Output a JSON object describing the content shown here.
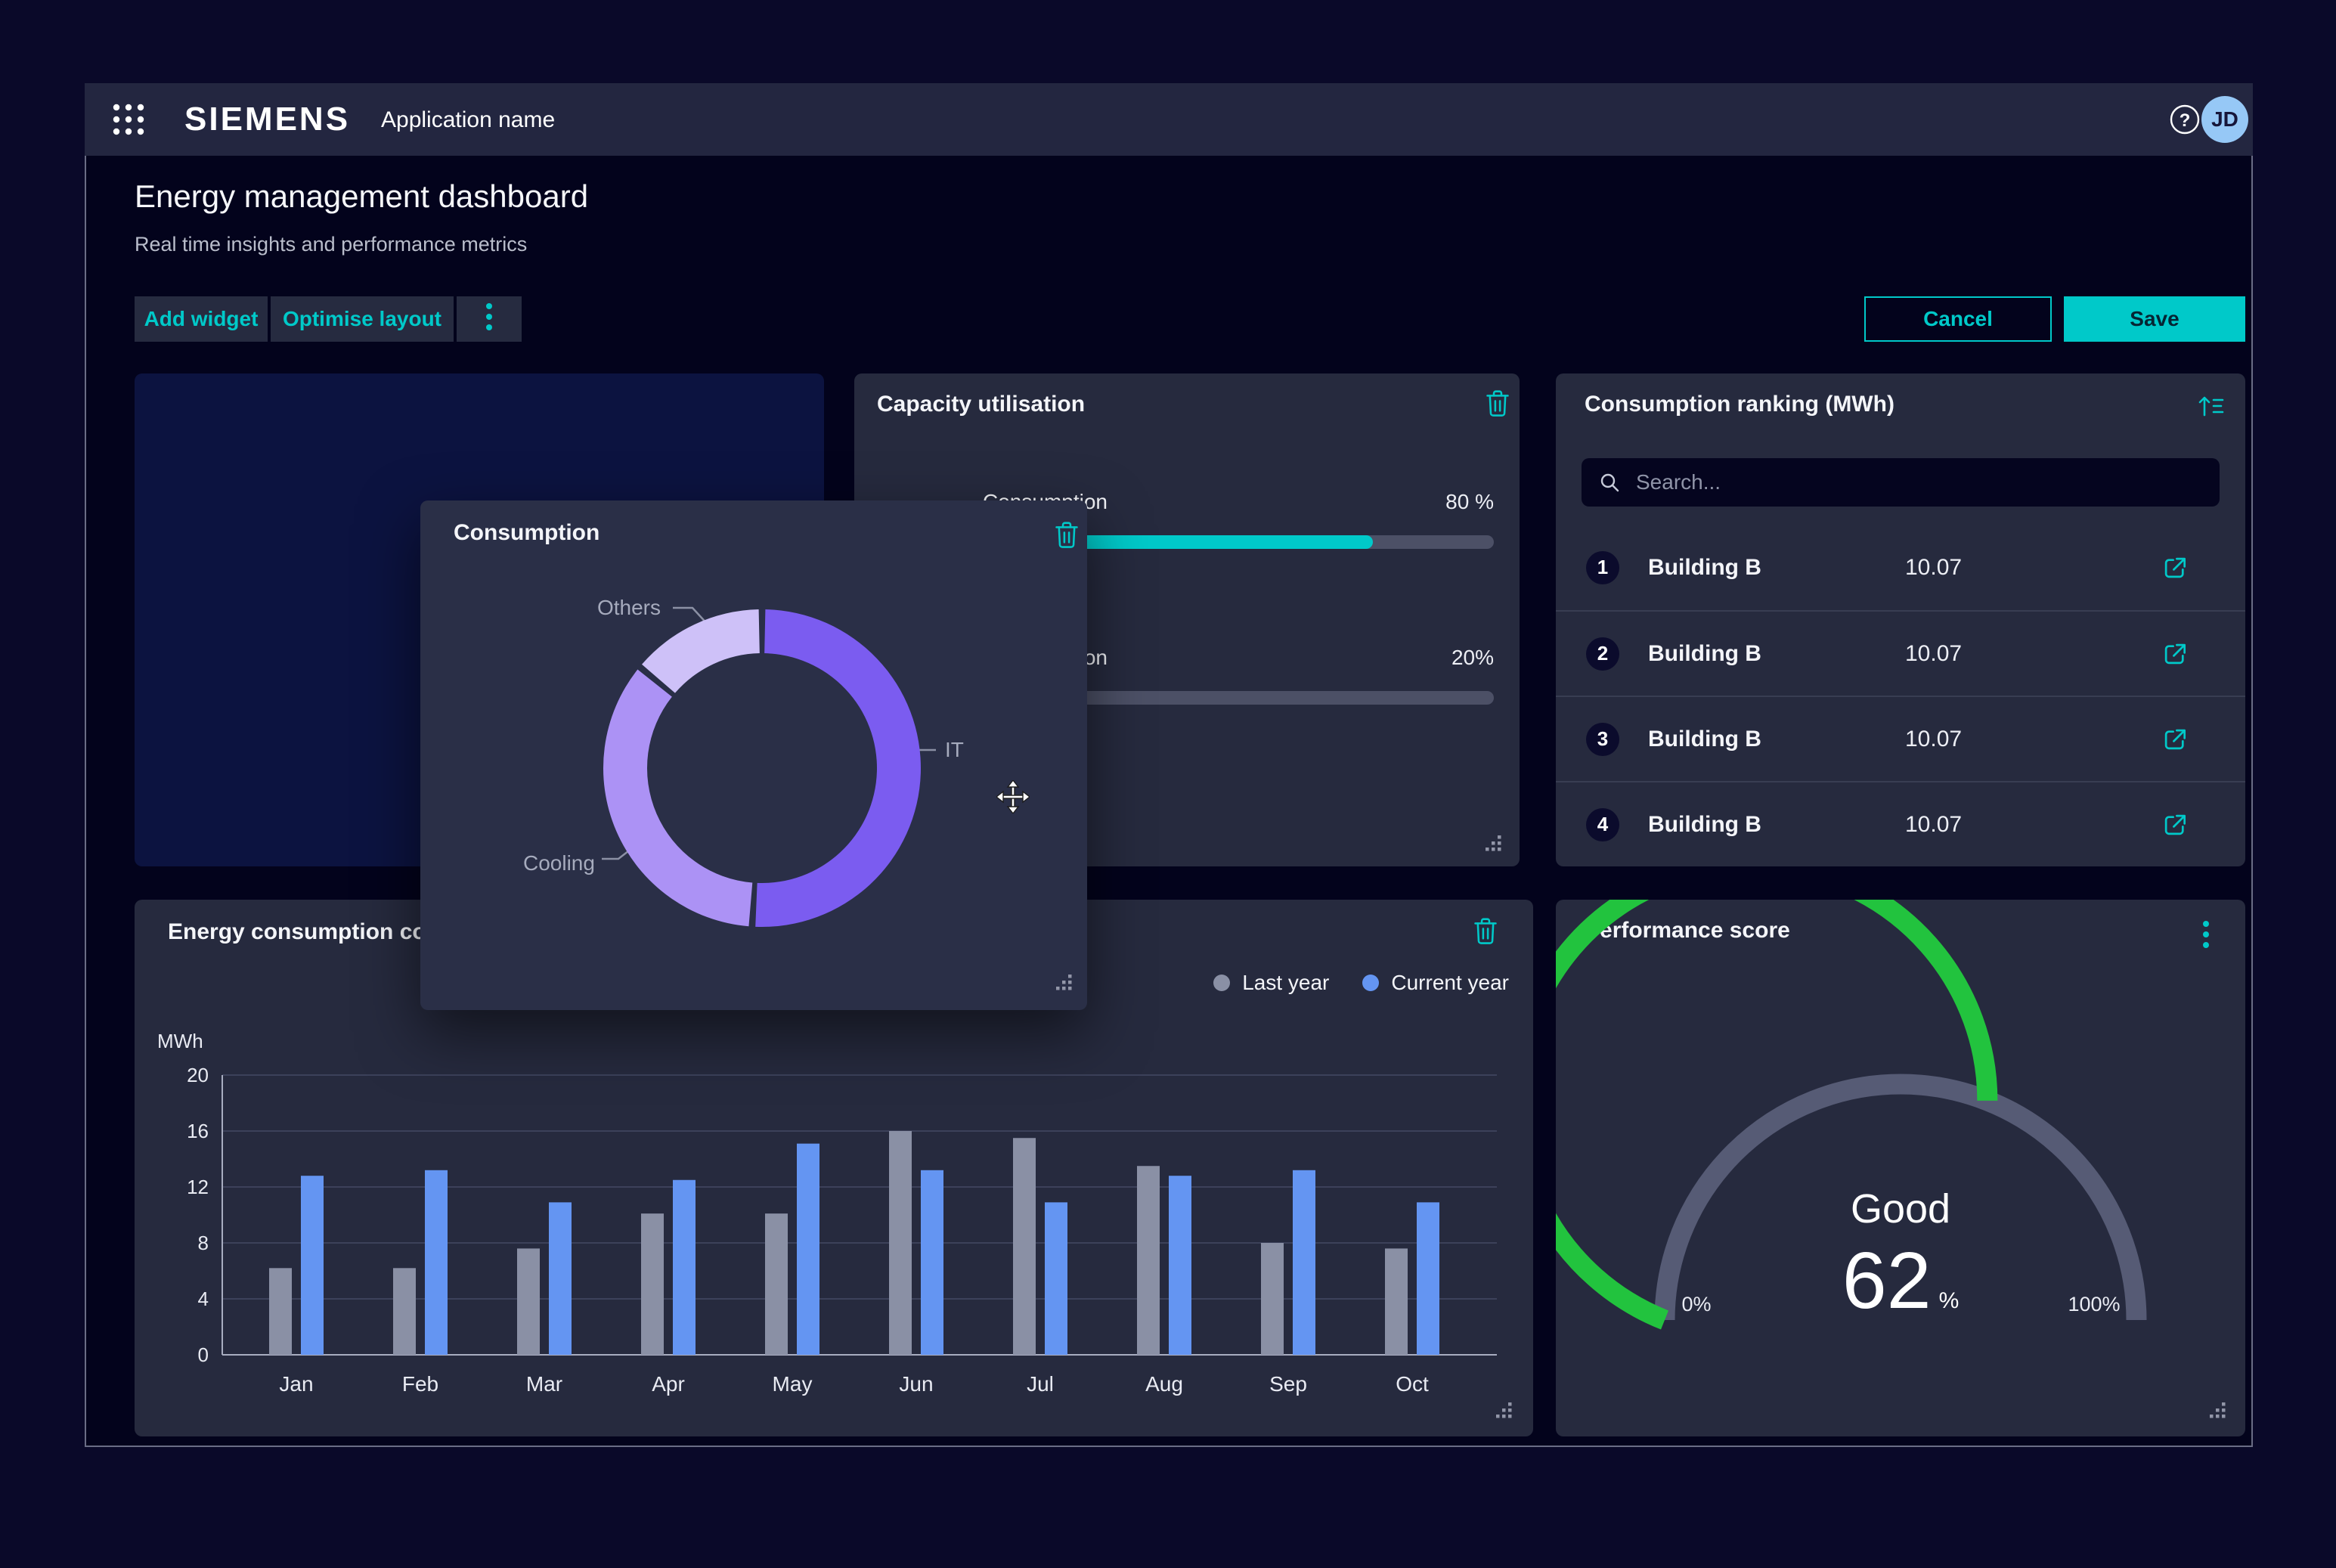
{
  "header": {
    "brand": "SIEMENS",
    "app_name": "Application name",
    "avatar": "JD"
  },
  "page": {
    "title": "Energy management dashboard",
    "subtitle": "Real time insights and performance metrics"
  },
  "toolbar": {
    "add_widget": "Add widget",
    "optimise_layout": "Optimise layout",
    "cancel": "Cancel",
    "save": "Save"
  },
  "capacity": {
    "title": "Capacity utilisation",
    "rows": [
      {
        "label": "Consumption",
        "value_label": "80 %",
        "percent": 80
      },
      {
        "label": "Consumption",
        "value_label": "20%",
        "percent": 20
      }
    ]
  },
  "popup": {
    "title": "Consumption"
  },
  "ranking": {
    "title": "Consumption ranking (MWh)",
    "search_placeholder": "Search...",
    "rows": [
      {
        "rank": "1",
        "name": "Building B",
        "value": "10.07"
      },
      {
        "rank": "2",
        "name": "Building B",
        "value": "10.07"
      },
      {
        "rank": "3",
        "name": "Building B",
        "value": "10.07"
      },
      {
        "rank": "4",
        "name": "Building B",
        "value": "10.07"
      }
    ]
  },
  "energy_chart": {
    "title": "Energy consumption comparison"
  },
  "performance": {
    "title": "Performance score",
    "status": "Good",
    "value": "62",
    "unit": "%",
    "min": "0%",
    "max": "100%"
  },
  "colors": {
    "accent": "#00C9C9",
    "current_year": "#6495F2",
    "last_year": "#8A90A5",
    "gauge_green": "#22C33E",
    "gauge_track": "#565B75",
    "donut_it": "#7B5CF0",
    "donut_cooling": "#AC92F5",
    "donut_others": "#CEC1F8"
  },
  "chart_data": [
    {
      "type": "pie",
      "title": "Consumption",
      "segments": [
        {
          "label": "IT",
          "value": 51,
          "color": "#7B5CF0"
        },
        {
          "label": "Cooling",
          "value": 35,
          "color": "#AC92F5"
        },
        {
          "label": "Others",
          "value": 14,
          "color": "#CEC1F8"
        }
      ]
    },
    {
      "type": "bar",
      "title": "Energy consumption comparison",
      "ylabel": "MWh",
      "ylim": [
        0,
        20
      ],
      "yticks": [
        0,
        4,
        8,
        12,
        16,
        20
      ],
      "categories": [
        "Jan",
        "Feb",
        "Mar",
        "Apr",
        "May",
        "Jun",
        "Jul",
        "Aug",
        "Sep",
        "Oct"
      ],
      "series": [
        {
          "name": "Last year",
          "color": "#8A90A5",
          "values": [
            6.2,
            6.2,
            7.6,
            10.1,
            10.1,
            16.0,
            15.5,
            13.5,
            8.0,
            7.6
          ]
        },
        {
          "name": "Current year",
          "color": "#6495F2",
          "values": [
            12.8,
            13.2,
            10.9,
            12.5,
            15.1,
            13.2,
            10.9,
            12.8,
            13.2,
            10.9
          ]
        }
      ],
      "legend_position": "top-right",
      "grid": true
    },
    {
      "type": "gauge",
      "title": "Performance score",
      "value": 62,
      "min": 0,
      "max": 100,
      "label": "Good",
      "min_label": "0%",
      "max_label": "100%",
      "color": "#22C33E",
      "track": "#565B75"
    }
  ]
}
